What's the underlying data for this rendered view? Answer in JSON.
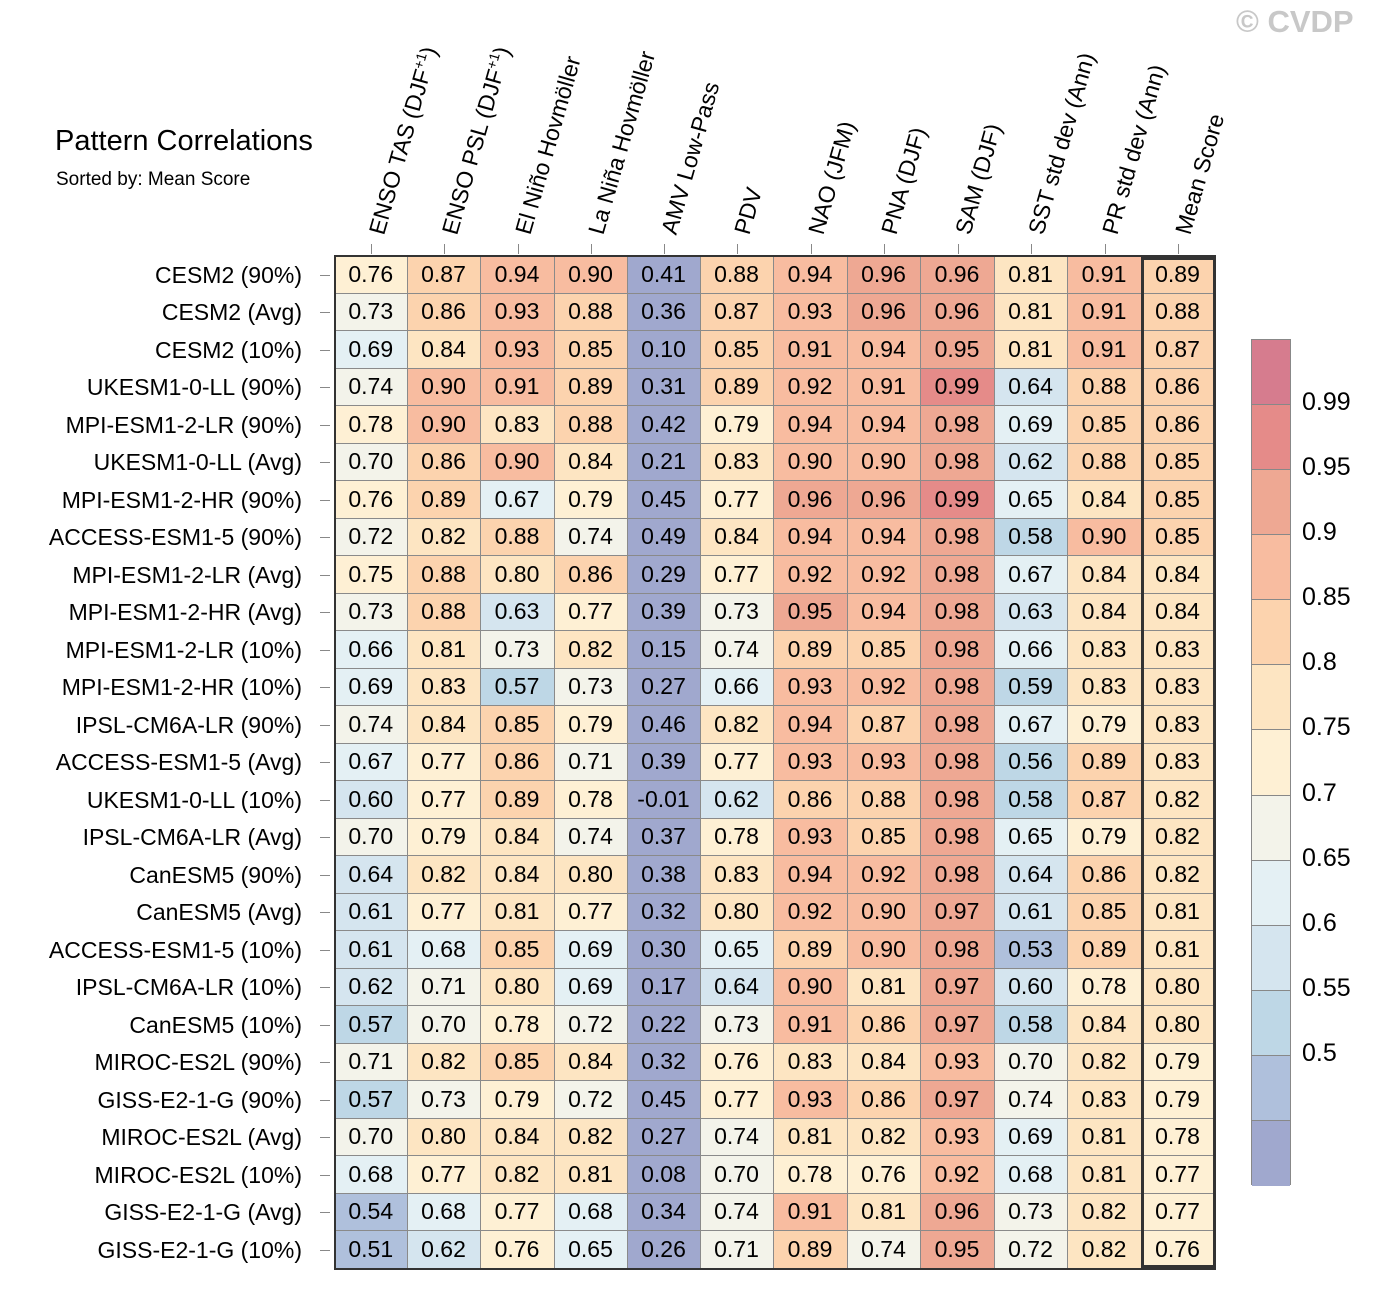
{
  "header": {
    "title": "Pattern Correlations",
    "subtitle": "Sorted by: Mean Score",
    "watermark": "© CVDP"
  },
  "colors": {
    "palette": [
      "#a0a8ce",
      "#afc0dc",
      "#bed7e6",
      "#d5e5ef",
      "#e4f0f4",
      "#f3f3ea",
      "#fef0d4",
      "#fde5c2",
      "#fcd3ae",
      "#f8bca0",
      "#eea893",
      "#e58b89",
      "#d67c8e"
    ],
    "frame": "#333333"
  },
  "chart_data": {
    "type": "heatmap",
    "title": "Pattern Correlations",
    "subtitle": "Sorted by: Mean Score",
    "columns": [
      "ENSO TAS (DJF+1)",
      "ENSO PSL (DJF+1)",
      "El Niño Hovmöller",
      "La Niña Hovmöller",
      "AMV Low-Pass",
      "PDV",
      "NAO (JFM)",
      "PNA (DJF)",
      "SAM (DJF)",
      "SST std dev (Ann)",
      "PR std dev (Ann)",
      "Mean Score"
    ],
    "column_labels": [
      {
        "main": "ENSO TAS (DJF",
        "sup": "+1",
        "end": ")"
      },
      {
        "main": "ENSO PSL (DJF",
        "sup": "+1",
        "end": ")"
      },
      {
        "main": "El Niño Hovmöller",
        "sup": "",
        "end": ""
      },
      {
        "main": "La Niña Hovmöller",
        "sup": "",
        "end": ""
      },
      {
        "main": "AMV Low-Pass",
        "sup": "",
        "end": ""
      },
      {
        "main": "PDV",
        "sup": "",
        "end": ""
      },
      {
        "main": "NAO (JFM)",
        "sup": "",
        "end": ""
      },
      {
        "main": "PNA (DJF)",
        "sup": "",
        "end": ""
      },
      {
        "main": "SAM (DJF)",
        "sup": "",
        "end": ""
      },
      {
        "main": "SST std dev (Ann)",
        "sup": "",
        "end": ""
      },
      {
        "main": "PR std dev (Ann)",
        "sup": "",
        "end": ""
      },
      {
        "main": "Mean Score",
        "sup": "",
        "end": ""
      }
    ],
    "rows": [
      "CESM2 (90%)",
      "CESM2 (Avg)",
      "CESM2 (10%)",
      "UKESM1-0-LL (90%)",
      "MPI-ESM1-2-LR (90%)",
      "UKESM1-0-LL (Avg)",
      "MPI-ESM1-2-HR (90%)",
      "ACCESS-ESM1-5 (90%)",
      "MPI-ESM1-2-LR (Avg)",
      "MPI-ESM1-2-HR (Avg)",
      "MPI-ESM1-2-LR (10%)",
      "MPI-ESM1-2-HR (10%)",
      "IPSL-CM6A-LR (90%)",
      "ACCESS-ESM1-5 (Avg)",
      "UKESM1-0-LL (10%)",
      "IPSL-CM6A-LR (Avg)",
      "CanESM5 (90%)",
      "CanESM5 (Avg)",
      "ACCESS-ESM1-5 (10%)",
      "IPSL-CM6A-LR (10%)",
      "CanESM5 (10%)",
      "MIROC-ES2L (90%)",
      "GISS-E2-1-G (90%)",
      "MIROC-ES2L (Avg)",
      "MIROC-ES2L (10%)",
      "GISS-E2-1-G (Avg)",
      "GISS-E2-1-G (10%)"
    ],
    "values": [
      [
        "0.76",
        "0.87",
        "0.94",
        "0.90",
        "0.41",
        "0.88",
        "0.94",
        "0.96",
        "0.96",
        "0.81",
        "0.91",
        "0.89"
      ],
      [
        "0.73",
        "0.86",
        "0.93",
        "0.88",
        "0.36",
        "0.87",
        "0.93",
        "0.96",
        "0.96",
        "0.81",
        "0.91",
        "0.88"
      ],
      [
        "0.69",
        "0.84",
        "0.93",
        "0.85",
        "0.10",
        "0.85",
        "0.91",
        "0.94",
        "0.95",
        "0.81",
        "0.91",
        "0.87"
      ],
      [
        "0.74",
        "0.90",
        "0.91",
        "0.89",
        "0.31",
        "0.89",
        "0.92",
        "0.91",
        "0.99",
        "0.64",
        "0.88",
        "0.86"
      ],
      [
        "0.78",
        "0.90",
        "0.83",
        "0.88",
        "0.42",
        "0.79",
        "0.94",
        "0.94",
        "0.98",
        "0.69",
        "0.85",
        "0.86"
      ],
      [
        "0.70",
        "0.86",
        "0.90",
        "0.84",
        "0.21",
        "0.83",
        "0.90",
        "0.90",
        "0.98",
        "0.62",
        "0.88",
        "0.85"
      ],
      [
        "0.76",
        "0.89",
        "0.67",
        "0.79",
        "0.45",
        "0.77",
        "0.96",
        "0.96",
        "0.99",
        "0.65",
        "0.84",
        "0.85"
      ],
      [
        "0.72",
        "0.82",
        "0.88",
        "0.74",
        "0.49",
        "0.84",
        "0.94",
        "0.94",
        "0.98",
        "0.58",
        "0.90",
        "0.85"
      ],
      [
        "0.75",
        "0.88",
        "0.80",
        "0.86",
        "0.29",
        "0.77",
        "0.92",
        "0.92",
        "0.98",
        "0.67",
        "0.84",
        "0.84"
      ],
      [
        "0.73",
        "0.88",
        "0.63",
        "0.77",
        "0.39",
        "0.73",
        "0.95",
        "0.94",
        "0.98",
        "0.63",
        "0.84",
        "0.84"
      ],
      [
        "0.66",
        "0.81",
        "0.73",
        "0.82",
        "0.15",
        "0.74",
        "0.89",
        "0.85",
        "0.98",
        "0.66",
        "0.83",
        "0.83"
      ],
      [
        "0.69",
        "0.83",
        "0.57",
        "0.73",
        "0.27",
        "0.66",
        "0.93",
        "0.92",
        "0.98",
        "0.59",
        "0.83",
        "0.83"
      ],
      [
        "0.74",
        "0.84",
        "0.85",
        "0.79",
        "0.46",
        "0.82",
        "0.94",
        "0.87",
        "0.98",
        "0.67",
        "0.79",
        "0.83"
      ],
      [
        "0.67",
        "0.77",
        "0.86",
        "0.71",
        "0.39",
        "0.77",
        "0.93",
        "0.93",
        "0.98",
        "0.56",
        "0.89",
        "0.83"
      ],
      [
        "0.60",
        "0.77",
        "0.89",
        "0.78",
        "-0.01",
        "0.62",
        "0.86",
        "0.88",
        "0.98",
        "0.58",
        "0.87",
        "0.82"
      ],
      [
        "0.70",
        "0.79",
        "0.84",
        "0.74",
        "0.37",
        "0.78",
        "0.93",
        "0.85",
        "0.98",
        "0.65",
        "0.79",
        "0.82"
      ],
      [
        "0.64",
        "0.82",
        "0.84",
        "0.80",
        "0.38",
        "0.83",
        "0.94",
        "0.92",
        "0.98",
        "0.64",
        "0.86",
        "0.82"
      ],
      [
        "0.61",
        "0.77",
        "0.81",
        "0.77",
        "0.32",
        "0.80",
        "0.92",
        "0.90",
        "0.97",
        "0.61",
        "0.85",
        "0.81"
      ],
      [
        "0.61",
        "0.68",
        "0.85",
        "0.69",
        "0.30",
        "0.65",
        "0.89",
        "0.90",
        "0.98",
        "0.53",
        "0.89",
        "0.81"
      ],
      [
        "0.62",
        "0.71",
        "0.80",
        "0.69",
        "0.17",
        "0.64",
        "0.90",
        "0.81",
        "0.97",
        "0.60",
        "0.78",
        "0.80"
      ],
      [
        "0.57",
        "0.70",
        "0.78",
        "0.72",
        "0.22",
        "0.73",
        "0.91",
        "0.86",
        "0.97",
        "0.58",
        "0.84",
        "0.80"
      ],
      [
        "0.71",
        "0.82",
        "0.85",
        "0.84",
        "0.32",
        "0.76",
        "0.83",
        "0.84",
        "0.93",
        "0.70",
        "0.82",
        "0.79"
      ],
      [
        "0.57",
        "0.73",
        "0.79",
        "0.72",
        "0.45",
        "0.77",
        "0.93",
        "0.86",
        "0.97",
        "0.74",
        "0.83",
        "0.79"
      ],
      [
        "0.70",
        "0.80",
        "0.84",
        "0.82",
        "0.27",
        "0.74",
        "0.81",
        "0.82",
        "0.93",
        "0.69",
        "0.81",
        "0.78"
      ],
      [
        "0.68",
        "0.77",
        "0.82",
        "0.81",
        "0.08",
        "0.70",
        "0.78",
        "0.76",
        "0.92",
        "0.68",
        "0.81",
        "0.77"
      ],
      [
        "0.54",
        "0.68",
        "0.77",
        "0.68",
        "0.34",
        "0.74",
        "0.91",
        "0.81",
        "0.96",
        "0.73",
        "0.82",
        "0.77"
      ],
      [
        "0.51",
        "0.62",
        "0.76",
        "0.65",
        "0.26",
        "0.71",
        "0.89",
        "0.74",
        "0.95",
        "0.72",
        "0.82",
        "0.76"
      ]
    ],
    "colorbar": {
      "levels": [
        0.5,
        0.55,
        0.6,
        0.65,
        0.7,
        0.75,
        0.8,
        0.85,
        0.9,
        0.95,
        0.99
      ],
      "labels": [
        "0.99",
        "0.95",
        "0.9",
        "0.85",
        "0.8",
        "0.75",
        "0.7",
        "0.65",
        "0.6",
        "0.55",
        "0.5"
      ]
    }
  }
}
